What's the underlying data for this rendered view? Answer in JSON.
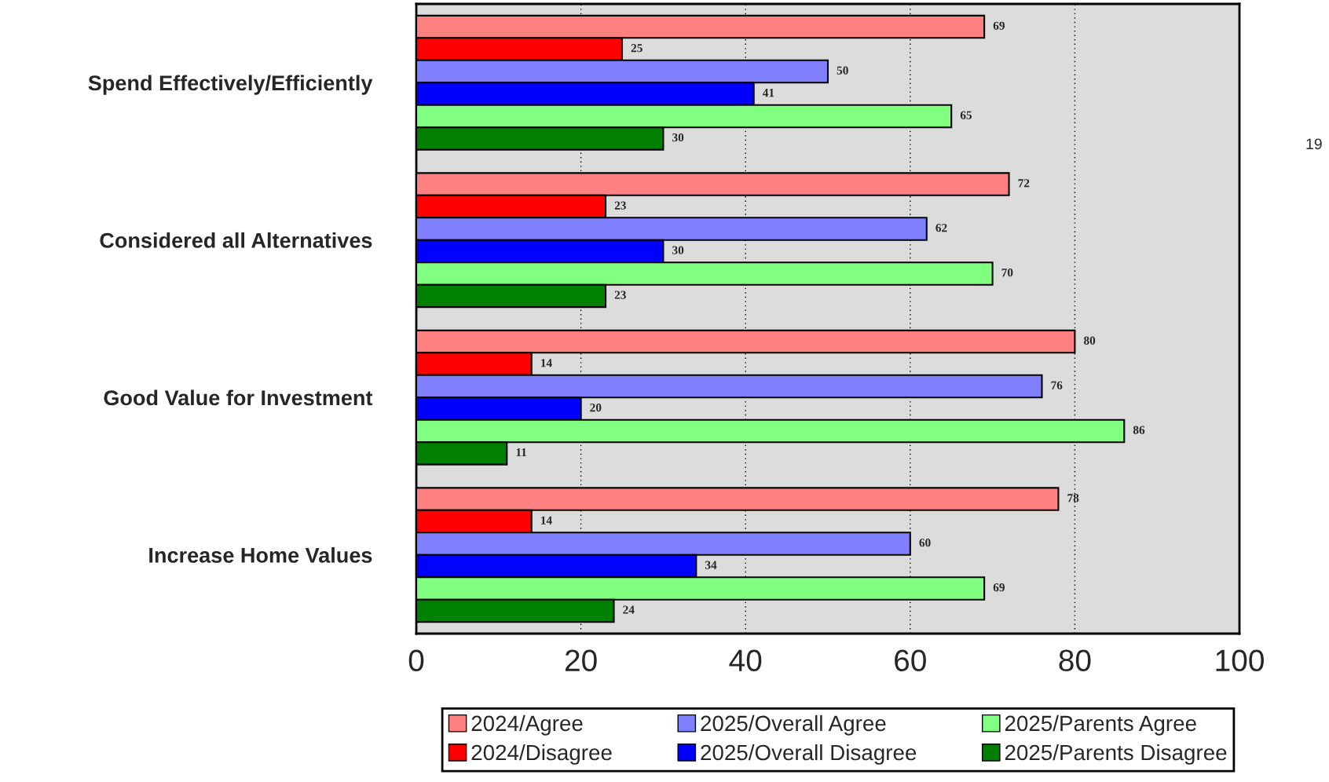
{
  "chart_data": {
    "type": "bar",
    "orientation": "horizontal",
    "categories": [
      "Spend Effectively/Efficiently",
      "Considered all Alternatives",
      "Good Value for Investment",
      "Increase Home Values"
    ],
    "series": [
      {
        "name": "2024/Agree",
        "color": "#ff8080",
        "values": [
          69,
          72,
          80,
          78
        ]
      },
      {
        "name": "2024/Disagree",
        "color": "#ff0000",
        "values": [
          25,
          23,
          14,
          14
        ]
      },
      {
        "name": "2025/Overall Agree",
        "color": "#8080ff",
        "values": [
          50,
          62,
          76,
          60
        ]
      },
      {
        "name": "2025/Overall Disagree",
        "color": "#0000ff",
        "values": [
          41,
          30,
          20,
          34
        ]
      },
      {
        "name": "2025/Parents Agree",
        "color": "#80ff80",
        "values": [
          65,
          70,
          86,
          69
        ]
      },
      {
        "name": "2025/Parents Disagree",
        "color": "#008000",
        "values": [
          30,
          23,
          11,
          24
        ]
      }
    ],
    "xlim": [
      0,
      100
    ],
    "xticks": [
      0,
      20,
      40,
      60,
      80,
      100
    ],
    "grid": "x",
    "legend": "bottom",
    "data_labels": true,
    "annotations": [
      "19"
    ]
  }
}
